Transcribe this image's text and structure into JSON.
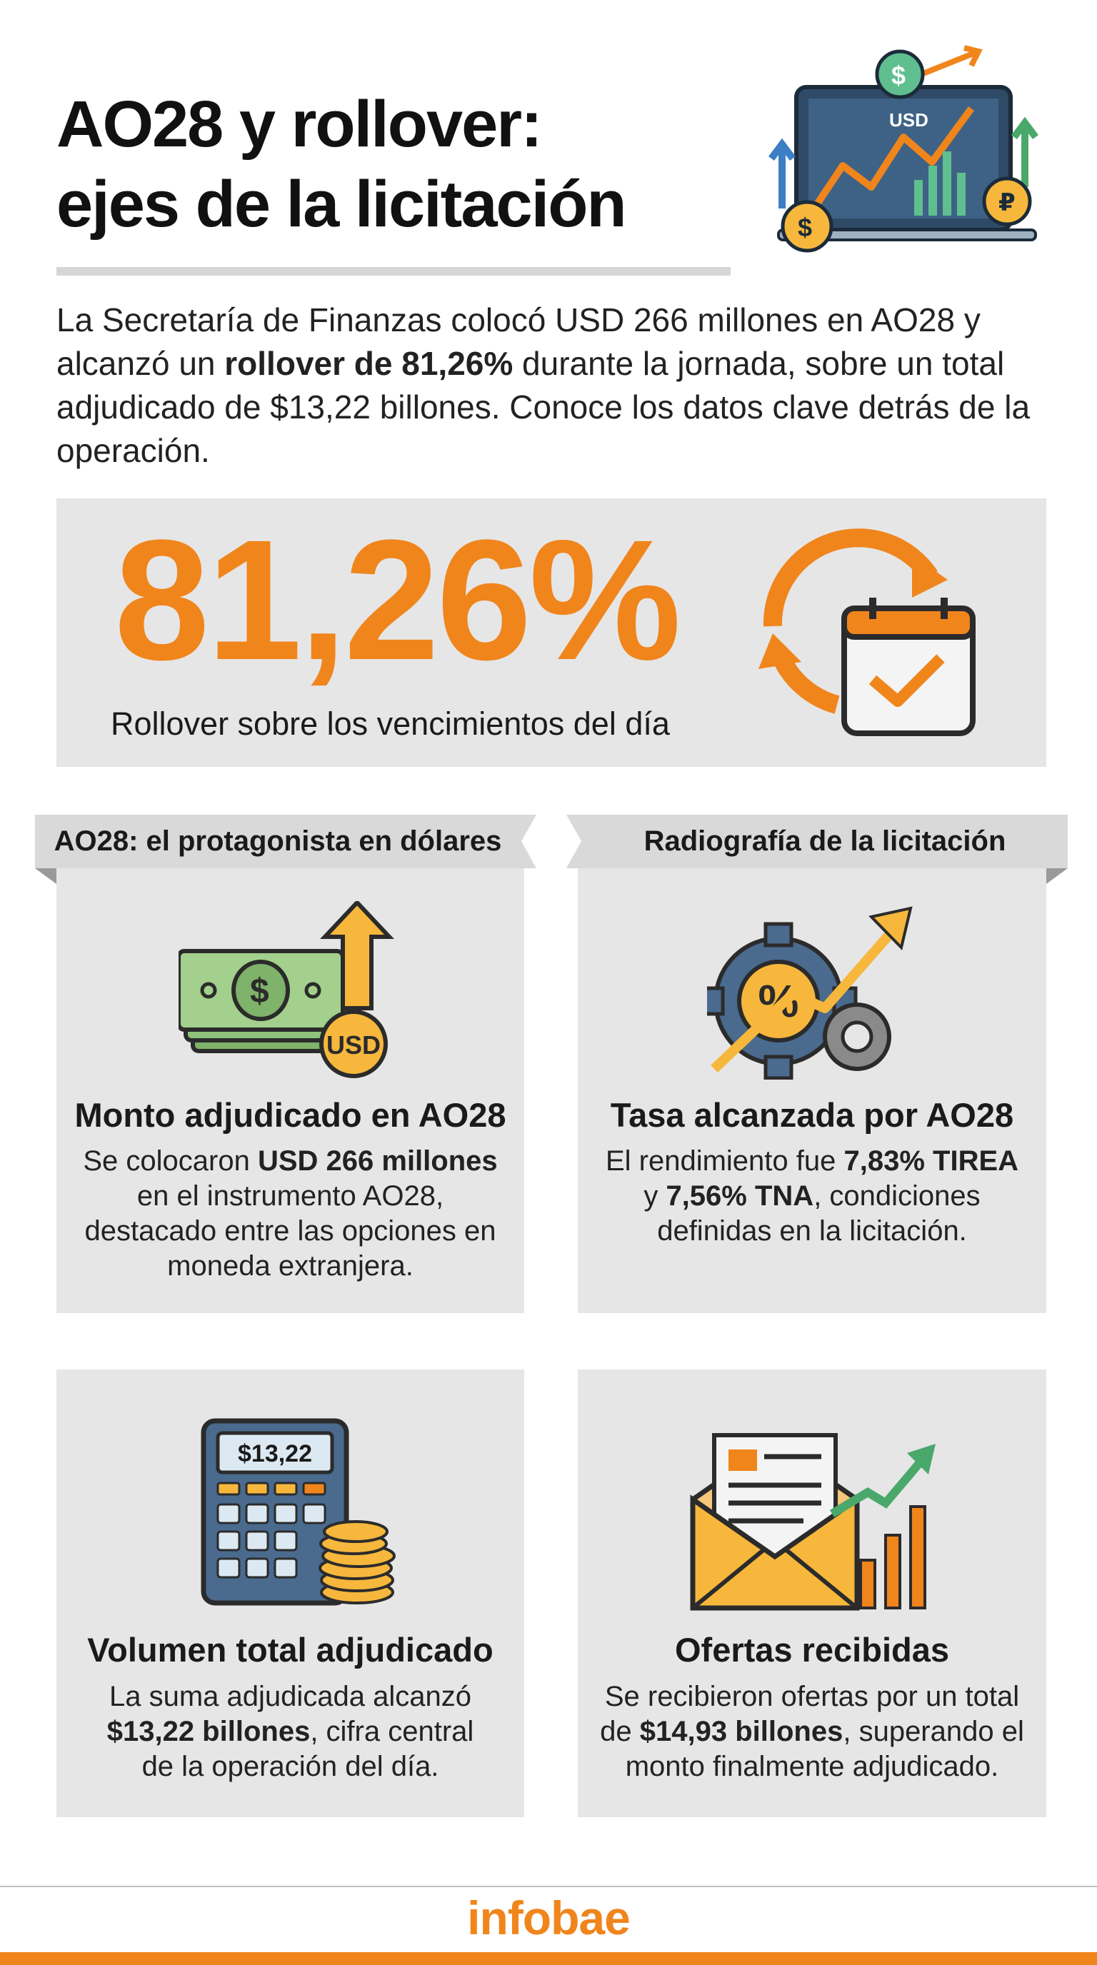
{
  "header": {
    "title": [
      "AO28 y rollover:",
      "ejes de la licitación"
    ],
    "icon_label": "USD"
  },
  "intro": [
    "La Secretaría de Finanzas colocó USD 266 millones en AO28 y alcanzó un ",
    "rollover de 81,26%",
    " durante la jornada, sobre un total adjudicado de $13,22 billones. Conoce los datos clave detrás de la operación."
  ],
  "highlight": {
    "value": "81,26%",
    "caption": "Rollover sobre los vencimientos del día"
  },
  "sections": [
    {
      "heading": "AO28: el protagonista en dólares"
    },
    {
      "heading": "Radiografía de la licitación"
    }
  ],
  "cards": [
    {
      "icon_label": "USD",
      "title": "Monto adjudicado en AO28",
      "body": [
        "Se colocaron ",
        "USD 266 millones",
        " en el instrumento AO28, destacado entre las opciones en moneda extranjera."
      ]
    },
    {
      "title": "Tasa alcanzada por AO28",
      "body": [
        "El rendimiento fue ",
        "7,83% TIREA",
        " y ",
        "7,56% TNA",
        ", condiciones definidas en la licitación."
      ]
    },
    {
      "icon_label": "$13,22",
      "title": "Volumen total adjudicado",
      "body": [
        "La suma adjudicada alcanzó ",
        "$13,22 billones",
        ", cifra central de la operación del día."
      ]
    },
    {
      "title": "Ofertas recibidas",
      "body": [
        "Se recibieron ofertas por un total de ",
        "$14,93 billones",
        ", superando el monto finalmente adjudicado."
      ]
    }
  ],
  "footer": {
    "brand": "infobae"
  }
}
